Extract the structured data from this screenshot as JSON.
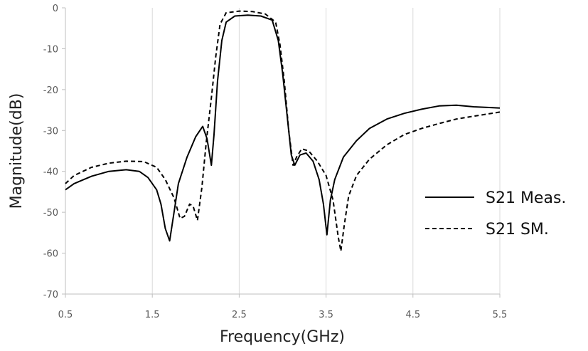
{
  "chart_data": {
    "type": "line",
    "title": "",
    "xlabel": "Frequency(GHz)",
    "ylabel": "Magnitude(dB)",
    "xlim": [
      0.5,
      5.5
    ],
    "ylim": [
      -70,
      0
    ],
    "x_ticks": [
      0.5,
      1.5,
      2.5,
      3.5,
      4.5,
      5.5
    ],
    "x_tick_labels": [
      "0.5",
      "1.5",
      "2.5",
      "3.5",
      "4.5",
      "5.5"
    ],
    "y_ticks": [
      0,
      -10,
      -20,
      -30,
      -40,
      -50,
      -60,
      -70
    ],
    "y_tick_labels": [
      "0",
      "-10",
      "-20",
      "-30",
      "-40",
      "-50",
      "-60",
      "-70"
    ],
    "grid": "vertical",
    "legend_position": "right",
    "series": [
      {
        "name": "S21 Meas.",
        "style": "solid",
        "color": "#000000",
        "points": [
          [
            0.5,
            -44.5
          ],
          [
            0.6,
            -43
          ],
          [
            0.8,
            -41.2
          ],
          [
            1.0,
            -40
          ],
          [
            1.2,
            -39.6
          ],
          [
            1.35,
            -40
          ],
          [
            1.45,
            -41.5
          ],
          [
            1.55,
            -44.5
          ],
          [
            1.6,
            -48
          ],
          [
            1.65,
            -54
          ],
          [
            1.7,
            -57
          ],
          [
            1.75,
            -50
          ],
          [
            1.8,
            -43
          ],
          [
            1.9,
            -36.5
          ],
          [
            2.0,
            -31.5
          ],
          [
            2.08,
            -29
          ],
          [
            2.13,
            -32
          ],
          [
            2.18,
            -38.5
          ],
          [
            2.21,
            -31
          ],
          [
            2.25,
            -18
          ],
          [
            2.3,
            -8
          ],
          [
            2.35,
            -3.5
          ],
          [
            2.45,
            -2
          ],
          [
            2.6,
            -1.8
          ],
          [
            2.75,
            -2
          ],
          [
            2.88,
            -3
          ],
          [
            2.95,
            -8
          ],
          [
            3.0,
            -16
          ],
          [
            3.05,
            -26
          ],
          [
            3.1,
            -36
          ],
          [
            3.14,
            -38.5
          ],
          [
            3.2,
            -36
          ],
          [
            3.27,
            -35.5
          ],
          [
            3.35,
            -37.5
          ],
          [
            3.42,
            -42
          ],
          [
            3.47,
            -48
          ],
          [
            3.51,
            -55.5
          ],
          [
            3.55,
            -47
          ],
          [
            3.6,
            -42
          ],
          [
            3.7,
            -36.5
          ],
          [
            3.85,
            -32.5
          ],
          [
            4.0,
            -29.5
          ],
          [
            4.2,
            -27.2
          ],
          [
            4.4,
            -25.8
          ],
          [
            4.6,
            -24.8
          ],
          [
            4.8,
            -24
          ],
          [
            5.0,
            -23.8
          ],
          [
            5.2,
            -24.2
          ],
          [
            5.4,
            -24.4
          ],
          [
            5.5,
            -24.5
          ]
        ]
      },
      {
        "name": "S21 SM.",
        "style": "dashed",
        "color": "#000000",
        "points": [
          [
            0.5,
            -43
          ],
          [
            0.6,
            -41
          ],
          [
            0.8,
            -39
          ],
          [
            1.0,
            -38
          ],
          [
            1.2,
            -37.5
          ],
          [
            1.4,
            -37.6
          ],
          [
            1.55,
            -39
          ],
          [
            1.65,
            -42
          ],
          [
            1.75,
            -46.5
          ],
          [
            1.82,
            -51.5
          ],
          [
            1.87,
            -51
          ],
          [
            1.93,
            -48
          ],
          [
            1.97,
            -48.5
          ],
          [
            2.02,
            -52
          ],
          [
            2.07,
            -44
          ],
          [
            2.12,
            -33
          ],
          [
            2.18,
            -22
          ],
          [
            2.23,
            -12
          ],
          [
            2.28,
            -4
          ],
          [
            2.35,
            -1.2
          ],
          [
            2.5,
            -0.8
          ],
          [
            2.65,
            -0.9
          ],
          [
            2.8,
            -1.5
          ],
          [
            2.92,
            -3.5
          ],
          [
            2.97,
            -9
          ],
          [
            3.02,
            -18
          ],
          [
            3.07,
            -30
          ],
          [
            3.12,
            -38.5
          ],
          [
            3.16,
            -36.5
          ],
          [
            3.22,
            -34.5
          ],
          [
            3.3,
            -35
          ],
          [
            3.4,
            -37.5
          ],
          [
            3.5,
            -41
          ],
          [
            3.58,
            -47
          ],
          [
            3.64,
            -56
          ],
          [
            3.67,
            -59.5
          ],
          [
            3.71,
            -53
          ],
          [
            3.76,
            -46
          ],
          [
            3.85,
            -41
          ],
          [
            4.0,
            -37
          ],
          [
            4.2,
            -33.5
          ],
          [
            4.4,
            -31
          ],
          [
            4.6,
            -29.5
          ],
          [
            4.8,
            -28.3
          ],
          [
            5.0,
            -27.2
          ],
          [
            5.2,
            -26.5
          ],
          [
            5.5,
            -25.5
          ]
        ]
      }
    ]
  }
}
